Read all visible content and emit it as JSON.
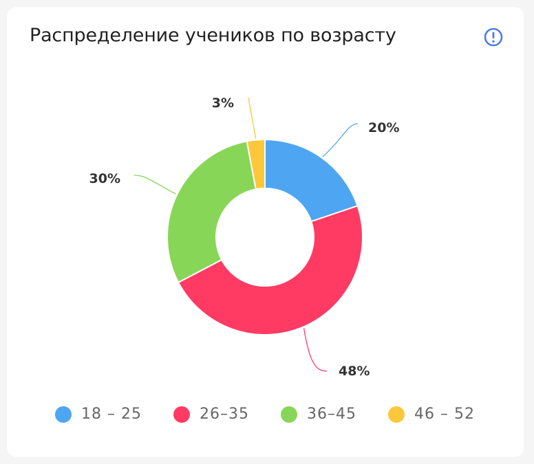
{
  "card": {
    "title": "Распределение учеников по возрасту",
    "info_icon": "info-circle-icon"
  },
  "chart_data": {
    "type": "pie",
    "variant": "donut",
    "title": "Распределение учеников по возрасту",
    "categories": [
      "18 – 25",
      "26–35",
      "36–45",
      "46 – 52"
    ],
    "values": [
      20,
      48,
      30,
      3
    ],
    "labels": [
      "20%",
      "48%",
      "30%",
      "3%"
    ],
    "colors": [
      "#4ea6f2",
      "#ff3b63",
      "#88d657",
      "#fcc73a"
    ],
    "legend_position": "bottom"
  }
}
